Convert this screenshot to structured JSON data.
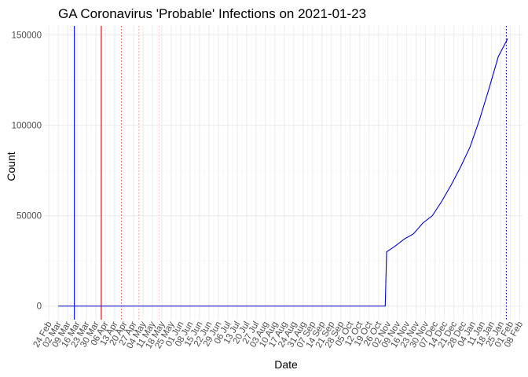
{
  "chart_data": {
    "type": "line",
    "title": "GA Coronavirus 'Probable' Infections on 2021-01-23",
    "xlabel": "Date",
    "ylabel": "Count",
    "x_start": "2020-02-24",
    "xlim": [
      "2020-02-21",
      "2021-02-10"
    ],
    "ylim": [
      -7500,
      155000
    ],
    "y_ticks": [
      0,
      50000,
      100000,
      150000
    ],
    "y_tick_labels": [
      "0",
      "50000",
      "100000",
      "150000"
    ],
    "x_tick_labels": [
      "24 Feb",
      "02 Mar",
      "09 Mar",
      "16 Mar",
      "23 Mar",
      "30 Mar",
      "06 Apr",
      "13 Apr",
      "20 Apr",
      "27 Apr",
      "04 May",
      "11 May",
      "18 May",
      "25 May",
      "01 Jun",
      "08 Jun",
      "15 Jun",
      "22 Jun",
      "29 Jun",
      "06 Jul",
      "13 Jul",
      "20 Jul",
      "27 Jul",
      "03 Aug",
      "10 Aug",
      "17 Aug",
      "24 Aug",
      "31 Aug",
      "07 Sep",
      "14 Sep",
      "21 Sep",
      "28 Sep",
      "05 Oct",
      "12 Oct",
      "19 Oct",
      "26 Oct",
      "02 Nov",
      "09 Nov",
      "16 Nov",
      "23 Nov",
      "30 Nov",
      "07 Dec",
      "14 Dec",
      "21 Dec",
      "28 Dec",
      "04 Jan",
      "11 Jan",
      "18 Jan",
      "25 Jan",
      "01 Feb",
      "08 Feb"
    ],
    "series": [
      {
        "color": "#0000cc",
        "points": [
          [
            "2020-03-02",
            0
          ],
          [
            "2020-10-31",
            0
          ],
          [
            "2020-11-01",
            30000
          ],
          [
            "2020-11-07",
            33000
          ],
          [
            "2020-11-14",
            37000
          ],
          [
            "2020-11-21",
            40000
          ],
          [
            "2020-11-28",
            46000
          ],
          [
            "2020-12-05",
            50000
          ],
          [
            "2020-12-12",
            58000
          ],
          [
            "2020-12-19",
            67000
          ],
          [
            "2020-12-26",
            77000
          ],
          [
            "2021-01-02",
            88000
          ],
          [
            "2021-01-09",
            103000
          ],
          [
            "2021-01-16",
            120000
          ],
          [
            "2021-01-23",
            138000
          ],
          [
            "2021-01-30",
            148000
          ]
        ]
      }
    ],
    "vlines": [
      {
        "date": "2020-03-14",
        "color": "#0000ff",
        "style": "solid"
      },
      {
        "date": "2020-04-03",
        "color": "#dd0000",
        "style": "solid"
      },
      {
        "date": "2020-04-18",
        "color": "#dd4444",
        "style": "dotted"
      },
      {
        "date": "2020-05-01",
        "color": "#ff9999",
        "style": "dotted"
      },
      {
        "date": "2020-05-16",
        "color": "#ffcccc",
        "style": "dotted"
      },
      {
        "date": "2021-01-29",
        "color": "#0000aa",
        "style": "dotted"
      }
    ],
    "grid": true
  }
}
